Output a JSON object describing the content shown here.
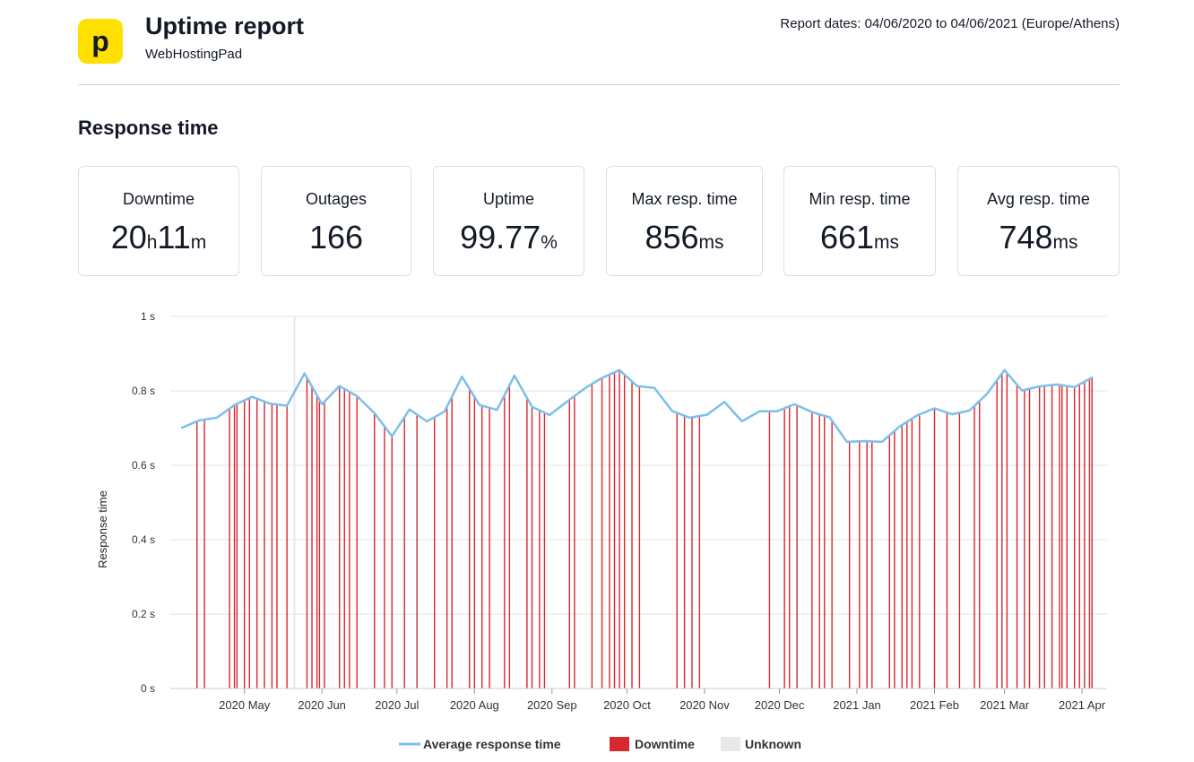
{
  "header": {
    "logo_letter": "p",
    "title": "Uptime report",
    "subtitle": "WebHostingPad",
    "report_dates": "Report dates: 04/06/2020 to 04/06/2021 (Europe/Athens)"
  },
  "section_title": "Response time",
  "stats": [
    {
      "label": "Downtime",
      "value_a": "20",
      "unit_a": "h",
      "value_b": "11",
      "unit_b": "m"
    },
    {
      "label": "Outages",
      "value_a": "166",
      "unit_a": "",
      "value_b": "",
      "unit_b": ""
    },
    {
      "label": "Uptime",
      "value_a": "99.77",
      "unit_a": "%",
      "value_b": "",
      "unit_b": ""
    },
    {
      "label": "Max resp. time",
      "value_a": "856",
      "unit_a": "ms",
      "value_b": "",
      "unit_b": ""
    },
    {
      "label": "Min resp. time",
      "value_a": "661",
      "unit_a": "ms",
      "value_b": "",
      "unit_b": ""
    },
    {
      "label": "Avg resp. time",
      "value_a": "748",
      "unit_a": "ms",
      "value_b": "",
      "unit_b": ""
    }
  ],
  "legend": {
    "avg": "Average response time",
    "downtime": "Downtime",
    "unknown": "Unknown"
  },
  "colors": {
    "line": "#7cc0ea",
    "downtime": "#d9272e",
    "unknown": "#e8e8e8",
    "grid": "#e3e3e3",
    "logo": "#ffe000"
  },
  "chart_data": {
    "type": "line",
    "ylabel": "Response time",
    "ylim": [
      0,
      1
    ],
    "yticks": [
      0,
      0.2,
      0.4,
      0.6,
      0.8,
      1
    ],
    "ytick_labels": [
      "0 s",
      "0.2 s",
      "0.4 s",
      "0.6 s",
      "0.8 s",
      "1 s"
    ],
    "x_start": "2020-04-06",
    "x_end": "2021-04-06",
    "xticks": [
      {
        "date": "2020-05-01",
        "label": "2020 May"
      },
      {
        "date": "2020-06-01",
        "label": "2020 Jun"
      },
      {
        "date": "2020-07-01",
        "label": "2020 Jul"
      },
      {
        "date": "2020-08-01",
        "label": "2020 Aug"
      },
      {
        "date": "2020-09-01",
        "label": "2020 Sep"
      },
      {
        "date": "2020-10-01",
        "label": "2020 Oct"
      },
      {
        "date": "2020-11-01",
        "label": "2020 Nov"
      },
      {
        "date": "2020-12-01",
        "label": "2020 Dec"
      },
      {
        "date": "2021-01-01",
        "label": "2021 Jan"
      },
      {
        "date": "2021-02-01",
        "label": "2021 Feb"
      },
      {
        "date": "2021-03-01",
        "label": "2021 Mar"
      },
      {
        "date": "2021-04-01",
        "label": "2021 Apr"
      }
    ],
    "series": [
      {
        "name": "Average response time",
        "points": [
          [
            "2020-04-06",
            0.701
          ],
          [
            "2020-04-13",
            0.721
          ],
          [
            "2020-04-20",
            0.728
          ],
          [
            "2020-04-27",
            0.762
          ],
          [
            "2020-05-04",
            0.784
          ],
          [
            "2020-05-11",
            0.766
          ],
          [
            "2020-05-18",
            0.76
          ],
          [
            "2020-05-25",
            0.847
          ],
          [
            "2020-06-01",
            0.764
          ],
          [
            "2020-06-08",
            0.813
          ],
          [
            "2020-06-15",
            0.786
          ],
          [
            "2020-06-22",
            0.74
          ],
          [
            "2020-06-29",
            0.678
          ],
          [
            "2020-07-06",
            0.75
          ],
          [
            "2020-07-13",
            0.718
          ],
          [
            "2020-07-20",
            0.744
          ],
          [
            "2020-07-27",
            0.838
          ],
          [
            "2020-08-03",
            0.762
          ],
          [
            "2020-08-10",
            0.749
          ],
          [
            "2020-08-17",
            0.841
          ],
          [
            "2020-08-24",
            0.757
          ],
          [
            "2020-08-31",
            0.735
          ],
          [
            "2020-09-07",
            0.771
          ],
          [
            "2020-09-14",
            0.806
          ],
          [
            "2020-09-21",
            0.835
          ],
          [
            "2020-09-28",
            0.856
          ],
          [
            "2020-10-05",
            0.813
          ],
          [
            "2020-10-12",
            0.808
          ],
          [
            "2020-10-19",
            0.746
          ],
          [
            "2020-10-26",
            0.728
          ],
          [
            "2020-11-02",
            0.736
          ],
          [
            "2020-11-09",
            0.77
          ],
          [
            "2020-11-16",
            0.718
          ],
          [
            "2020-11-23",
            0.745
          ],
          [
            "2020-11-30",
            0.745
          ],
          [
            "2020-12-07",
            0.764
          ],
          [
            "2020-12-14",
            0.743
          ],
          [
            "2020-12-21",
            0.729
          ],
          [
            "2020-12-28",
            0.663
          ],
          [
            "2021-01-04",
            0.665
          ],
          [
            "2021-01-11",
            0.663
          ],
          [
            "2021-01-18",
            0.704
          ],
          [
            "2021-01-25",
            0.734
          ],
          [
            "2021-02-01",
            0.753
          ],
          [
            "2021-02-08",
            0.737
          ],
          [
            "2021-02-15",
            0.747
          ],
          [
            "2021-02-22",
            0.792
          ],
          [
            "2021-03-01",
            0.856
          ],
          [
            "2021-03-08",
            0.801
          ],
          [
            "2021-03-15",
            0.812
          ],
          [
            "2021-03-22",
            0.817
          ],
          [
            "2021-03-29",
            0.81
          ],
          [
            "2021-04-05",
            0.836
          ]
        ]
      }
    ],
    "downtime_dates": [
      "2020-04-12",
      "2020-04-15",
      "2020-04-25",
      "2020-04-27",
      "2020-04-28",
      "2020-05-01",
      "2020-05-03",
      "2020-05-06",
      "2020-05-09",
      "2020-05-12",
      "2020-05-14",
      "2020-05-18",
      "2020-05-26",
      "2020-05-28",
      "2020-05-30",
      "2020-05-31",
      "2020-06-02",
      "2020-06-08",
      "2020-06-10",
      "2020-06-12",
      "2020-06-15",
      "2020-06-22",
      "2020-06-26",
      "2020-06-29",
      "2020-07-04",
      "2020-07-09",
      "2020-07-16",
      "2020-07-21",
      "2020-07-23",
      "2020-07-30",
      "2020-08-01",
      "2020-08-04",
      "2020-08-07",
      "2020-08-13",
      "2020-08-15",
      "2020-08-22",
      "2020-08-24",
      "2020-08-27",
      "2020-08-29",
      "2020-09-08",
      "2020-09-10",
      "2020-09-17",
      "2020-09-21",
      "2020-09-24",
      "2020-09-26",
      "2020-09-28",
      "2020-09-30",
      "2020-10-03",
      "2020-10-06",
      "2020-10-21",
      "2020-10-24",
      "2020-10-27",
      "2020-10-30",
      "2020-11-27",
      "2020-12-03",
      "2020-12-05",
      "2020-12-08",
      "2020-12-14",
      "2020-12-17",
      "2020-12-19",
      "2020-12-22",
      "2020-12-29",
      "2021-01-02",
      "2021-01-05",
      "2021-01-07",
      "2021-01-14",
      "2021-01-16",
      "2021-01-19",
      "2021-01-21",
      "2021-01-23",
      "2021-01-26",
      "2021-02-01",
      "2021-02-06",
      "2021-02-11",
      "2021-02-17",
      "2021-02-19",
      "2021-02-26",
      "2021-02-28",
      "2021-03-02",
      "2021-03-06",
      "2021-03-09",
      "2021-03-11",
      "2021-03-15",
      "2021-03-17",
      "2021-03-20",
      "2021-03-23",
      "2021-03-24",
      "2021-03-26",
      "2021-03-29",
      "2021-03-31",
      "2021-04-02",
      "2021-04-04",
      "2021-04-05"
    ],
    "unknown_dates": [
      "2020-05-21"
    ]
  }
}
